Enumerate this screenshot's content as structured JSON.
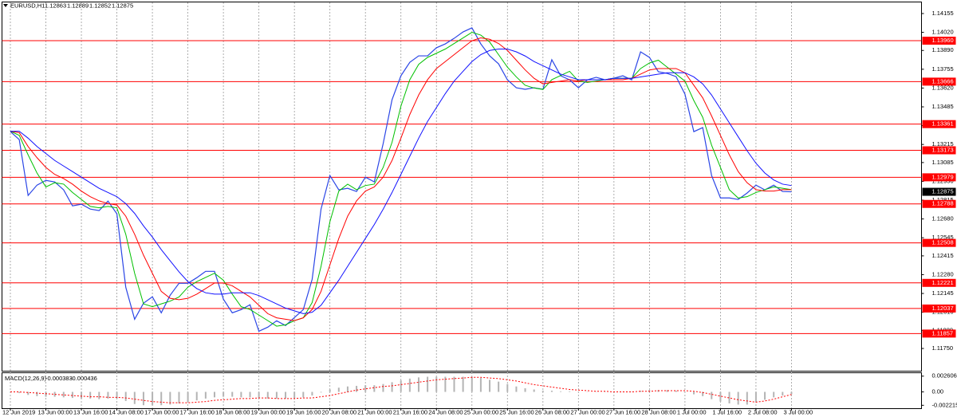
{
  "chart_data": [
    {
      "type": "line",
      "symbol": "EURUSD,H1",
      "ohlc": [
        1.12863,
        1.12889,
        1.12852,
        1.12875
      ],
      "categories": [
        "12 Jun 2019",
        null,
        null,
        null,
        "13 Jun 00:00",
        null,
        null,
        null,
        "13 Jun 16:00",
        null,
        null,
        null,
        "14 Jun 08:00",
        null,
        null,
        null,
        "17 Jun 00:00",
        null,
        null,
        null,
        "17 Jun 16:00",
        null,
        null,
        null,
        "18 Jun 08:00",
        null,
        null,
        null,
        "19 Jun 00:00",
        null,
        null,
        null,
        "19 Jun 16:00",
        null,
        null,
        null,
        "20 Jun 08:00",
        null,
        null,
        null,
        "21 Jun 00:00",
        null,
        null,
        null,
        "21 Jun 16:00",
        null,
        null,
        null,
        "24 Jun 08:00",
        null,
        null,
        null,
        "25 Jun 00:00",
        null,
        null,
        null,
        "25 Jun 16:00",
        null,
        null,
        null,
        "26 Jun 08:00",
        null,
        null,
        null,
        "27 Jun 00:00",
        null,
        null,
        null,
        "27 Jun 16:00",
        null,
        null,
        null,
        "28 Jun 08:00",
        null,
        null,
        null,
        "1 Jul 00:00",
        null,
        null,
        null,
        "1 Jul 16:00",
        null,
        null,
        null,
        "2 Jul 08:00",
        null,
        null,
        null,
        "3 Jul 00:00"
      ],
      "series": [
        {
          "color": "#2b46e6",
          "values": [
            1.13307,
            1.1325,
            1.12849,
            1.12923,
            1.12957,
            1.12946,
            1.12889,
            1.12774,
            1.12786,
            1.12751,
            1.1274,
            1.12808,
            1.12717,
            1.1219,
            1.1196,
            1.12075,
            1.12121,
            1.12006,
            1.12132,
            1.12218,
            1.12218,
            1.12258,
            1.12304,
            1.12304,
            1.12104,
            1.12006,
            1.12029,
            1.12064,
            1.11874,
            1.11903,
            1.11949,
            1.11915,
            1.11972,
            1.12029,
            1.12247,
            1.12751,
            1.12992,
            1.12889,
            1.129,
            1.12877,
            1.1298,
            1.12946,
            1.13221,
            1.13536,
            1.13708,
            1.13805,
            1.13851,
            1.13851,
            1.13909,
            1.13937,
            1.13977,
            1.14023,
            1.14052,
            1.13937,
            1.13851,
            1.13794,
            1.13679,
            1.13622,
            1.13611,
            1.13622,
            1.13611,
            1.13823,
            1.13708,
            1.13679,
            1.13622,
            1.13679,
            1.13697,
            1.13679,
            1.13691,
            1.13708,
            1.13679,
            1.1388,
            1.1384,
            1.13737,
            1.13725,
            1.13702,
            1.13576,
            1.13307,
            1.13336,
            1.12992,
            1.12831,
            1.12831,
            1.1282,
            1.12866,
            1.12923,
            1.12889,
            1.12923,
            1.12877,
            1.12875
          ]
        },
        {
          "color": "#00c000",
          "values": [
            1.1331,
            1.1328,
            1.1314,
            1.1301,
            1.1291,
            1.1294,
            1.1293,
            1.1287,
            1.1282,
            1.1277,
            1.1276,
            1.1277,
            1.1276,
            1.1257,
            1.1229,
            1.1207,
            1.1205,
            1.1207,
            1.1209,
            1.1212,
            1.1219,
            1.1223,
            1.1226,
            1.1229,
            1.1224,
            1.1214,
            1.1205,
            1.1203,
            1.1199,
            1.1195,
            1.1191,
            1.1192,
            1.1195,
            1.1197,
            1.1208,
            1.1234,
            1.1266,
            1.1288,
            1.1293,
            1.1289,
            1.1292,
            1.1293,
            1.1305,
            1.1323,
            1.1349,
            1.1368,
            1.1379,
            1.1384,
            1.1387,
            1.139,
            1.1394,
            1.1398,
            1.1402,
            1.14,
            1.1395,
            1.1386,
            1.1377,
            1.137,
            1.1364,
            1.1362,
            1.1361,
            1.1368,
            1.1371,
            1.1374,
            1.1367,
            1.1366,
            1.1367,
            1.1368,
            1.1369,
            1.1369,
            1.1369,
            1.1376,
            1.138,
            1.1382,
            1.1377,
            1.1372,
            1.1367,
            1.1353,
            1.1341,
            1.1321,
            1.1305,
            1.1289,
            1.1283,
            1.1284,
            1.1287,
            1.1289,
            1.1291,
            1.129,
            1.1289
          ]
        },
        {
          "color": "#ff0000",
          "values": [
            1.1331,
            1.133,
            1.132,
            1.1312,
            1.1305,
            1.13,
            1.1297,
            1.1293,
            1.1288,
            1.1284,
            1.1281,
            1.1279,
            1.1278,
            1.127,
            1.1257,
            1.1242,
            1.1229,
            1.1216,
            1.1211,
            1.121,
            1.1211,
            1.1214,
            1.1218,
            1.1222,
            1.1222,
            1.122,
            1.1216,
            1.1212,
            1.1206,
            1.12,
            1.1197,
            1.1196,
            1.1195,
            1.1197,
            1.1203,
            1.1216,
            1.1235,
            1.1254,
            1.127,
            1.1281,
            1.1288,
            1.1291,
            1.1298,
            1.131,
            1.1326,
            1.1343,
            1.1357,
            1.1368,
            1.1376,
            1.1381,
            1.1386,
            1.1391,
            1.1396,
            1.1398,
            1.1397,
            1.1394,
            1.1389,
            1.1382,
            1.1375,
            1.1369,
            1.1365,
            1.1366,
            1.1367,
            1.1368,
            1.1367,
            1.1368,
            1.1368,
            1.1368,
            1.1368,
            1.1368,
            1.1369,
            1.1372,
            1.1375,
            1.1376,
            1.1376,
            1.1376,
            1.1373,
            1.1364,
            1.1355,
            1.1342,
            1.1328,
            1.1314,
            1.1302,
            1.1294,
            1.1289,
            1.1288,
            1.1288,
            1.1289,
            1.1289
          ]
        },
        {
          "color": "#1010ff",
          "values": [
            1.1331,
            1.1331,
            1.1326,
            1.132,
            1.1315,
            1.131,
            1.1306,
            1.1302,
            1.1298,
            1.1294,
            1.129,
            1.1287,
            1.1284,
            1.1279,
            1.1272,
            1.1263,
            1.1255,
            1.1246,
            1.1238,
            1.123,
            1.1223,
            1.1218,
            1.1215,
            1.1214,
            1.1214,
            1.1215,
            1.1215,
            1.1215,
            1.1213,
            1.121,
            1.1207,
            1.1204,
            1.1202,
            1.12,
            1.1201,
            1.1206,
            1.1215,
            1.1224,
            1.1234,
            1.1244,
            1.1254,
            1.1264,
            1.1275,
            1.1287,
            1.13,
            1.1313,
            1.1326,
            1.1338,
            1.1348,
            1.1358,
            1.1367,
            1.1374,
            1.1381,
            1.1386,
            1.1389,
            1.139,
            1.139,
            1.1388,
            1.1385,
            1.1381,
            1.1378,
            1.1375,
            1.1372,
            1.137,
            1.1368,
            1.1368,
            1.1368,
            1.1368,
            1.1369,
            1.1369,
            1.1369,
            1.137,
            1.1371,
            1.1372,
            1.1373,
            1.1373,
            1.1373,
            1.137,
            1.1365,
            1.1357,
            1.1347,
            1.1337,
            1.1327,
            1.1317,
            1.1308,
            1.1301,
            1.1296,
            1.1293,
            1.1292
          ]
        }
      ],
      "ylim": [
        1.1159,
        1.14235
      ],
      "yticks": [
        1.14155,
        {
          "value": 1.1402,
          "label": "1.14020"
        },
        {
          "value": 1.1389,
          "label": "1.13890"
        },
        1.13755,
        {
          "value": 1.1362,
          "label": "1.13620"
        },
        1.13485,
        {
          "value": 1.1335,
          "label": "1.13350"
        },
        1.13215,
        1.13085,
        {
          "value": 1.1295,
          "label": "1.12950"
        },
        1.12815,
        {
          "value": 1.1268,
          "label": "1.12680"
        },
        1.12545,
        1.12415,
        {
          "value": 1.1228,
          "label": "1.12280"
        },
        1.12145,
        {
          "value": 1.1201,
          "label": "1.12010"
        },
        {
          "value": 1.1188,
          "label": "1.11880"
        },
        {
          "value": 1.1175,
          "label": "1.11750"
        }
      ],
      "levels": [
        {
          "value": 1.1396,
          "label": "1.13960"
        },
        1.13666,
        1.13361,
        1.13173,
        1.12979,
        1.12788,
        1.12508,
        1.12221,
        1.12037,
        1.11857
      ],
      "level_color": "#ff0000",
      "last_price": 1.12875,
      "grid": "x"
    },
    {
      "type": "macd",
      "label": "MACD(12,26,9)",
      "current": [
        -0.000383,
        -0.000436
      ],
      "series": [
        {
          "color": "#b4b4b4",
          "values": [
            0,
            -0.0002,
            -0.0005,
            -0.0007,
            -0.0008,
            -0.0008,
            -0.0009,
            -0.001,
            -0.0011,
            -0.0011,
            -0.0012,
            -0.0011,
            -0.0011,
            -0.0015,
            -0.002,
            -0.0022,
            -0.0022,
            -0.0022,
            -0.0021,
            -0.0019,
            -0.0017,
            -0.0014,
            -0.0011,
            -0.0009,
            -0.0008,
            -0.0008,
            -0.0009,
            -0.0009,
            -0.001,
            -0.0011,
            -0.0011,
            -0.0011,
            -0.001,
            -0.0009,
            -0.0006,
            -0.0001,
            0.0004,
            0.0007,
            0.0009,
            0.001,
            0.0011,
            0.0011,
            0.0013,
            0.0016,
            0.0019,
            0.0022,
            0.0024,
            0.0025,
            0.0025,
            0.0025,
            0.0025,
            0.0025,
            0.0025,
            0.0023,
            0.002,
            0.0017,
            0.0013,
            0.0009,
            0.0006,
            0.0004,
            0.0002,
            0.0002,
            0.0001,
            0.0001,
            0,
            0,
            0,
            0,
            0,
            0,
            0,
            0.0002,
            0.0003,
            0.0003,
            0.0003,
            0.0002,
            0,
            -0.0004,
            -0.0007,
            -0.0012,
            -0.0016,
            -0.0019,
            -0.0021,
            -0.0021,
            -0.0017,
            -0.0013,
            -0.0009,
            -0.0006,
            -0.000383
          ]
        },
        {
          "color": "#ff0000",
          "values": [
            0,
            0,
            -0.0001,
            -0.0002,
            -0.0003,
            -0.0004,
            -0.0005,
            -0.0006,
            -0.0007,
            -0.0008,
            -0.0008,
            -0.0009,
            -0.0009,
            -0.001,
            -0.0012,
            -0.0014,
            -0.0016,
            -0.0017,
            -0.0018,
            -0.0018,
            -0.0018,
            -0.0017,
            -0.0016,
            -0.0014,
            -0.0013,
            -0.0012,
            -0.0011,
            -0.0011,
            -0.001,
            -0.001,
            -0.0011,
            -0.0011,
            -0.0011,
            -0.001,
            -0.001,
            -0.0008,
            -0.0006,
            -0.0003,
            0,
            0.0003,
            0.0005,
            0.0007,
            0.0009,
            0.001,
            0.0012,
            0.0014,
            0.0016,
            0.0018,
            0.002,
            0.0021,
            0.0022,
            0.0023,
            0.0024,
            0.0024,
            0.0023,
            0.0022,
            0.002,
            0.0018,
            0.0015,
            0.0012,
            0.001,
            0.0008,
            0.0006,
            0.0004,
            0.0003,
            0.0002,
            0.0001,
            0.0001,
            0,
            0,
            0,
            0.0001,
            0.0001,
            0.0002,
            0.0002,
            0.0002,
            0.0002,
            0.0001,
            -0.0001,
            -0.0004,
            -0.0007,
            -0.001,
            -0.0013,
            -0.0015,
            -0.0017,
            -0.0015,
            -0.0012,
            -0.0008,
            -0.000436
          ]
        }
      ],
      "ylim": [
        -0.0027,
        0.0031
      ],
      "yticks": [
        0.002606,
        {
          "value": 0,
          "label": "0.00"
        },
        -0.002215
      ]
    }
  ]
}
